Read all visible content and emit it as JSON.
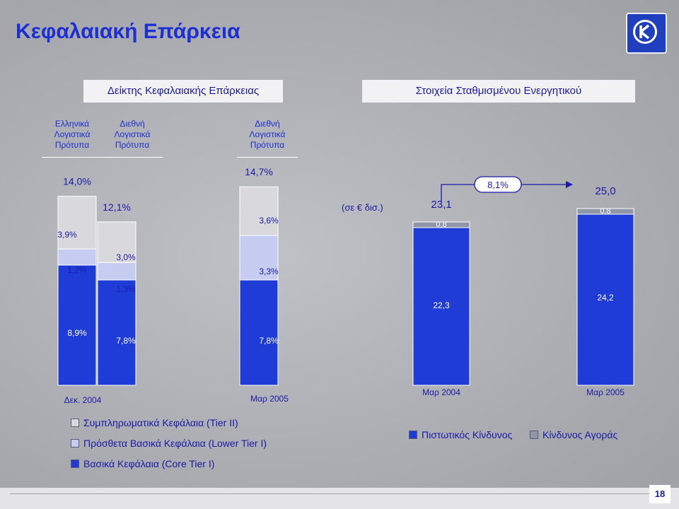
{
  "slide": {
    "title": "Κεφαλαιακή Επάρκεια",
    "page_number": "18"
  },
  "left_panel": {
    "header": "Δείκτης Κεφαλαιακής Επάρκειας",
    "column_labels": [
      "Ελληνικά\nΛογιστικά\nΠρότυπα",
      "Διεθνή\nΛογιστικά\nΠρότυπα",
      "Διεθνή\nΛογιστικά\nΠρότυπα"
    ]
  },
  "right_panel": {
    "header": "Στοιχεία Σταθμισμένου Ενεργητικού",
    "unit_note": "(σε € δισ.)",
    "growth_label": "8,1%"
  },
  "colors": {
    "tier1": "#1f3dd6",
    "lower_tier1": "#c6cdf0",
    "tier2": "#d9d9dd",
    "credit_risk": "#1f3dd6",
    "market_risk": "#8f96a8"
  },
  "chart_data": [
    {
      "type": "bar",
      "stacked": true,
      "categories": [
        "Δεκ. 2004",
        "",
        "Μαρ 2005"
      ],
      "series": [
        {
          "name": "Βασικά Κεφάλαια (Core Tier I)",
          "values": [
            8.9,
            7.8,
            7.8
          ],
          "labels": [
            "8,9%",
            "7,8%",
            "7,8%"
          ]
        },
        {
          "name": "Πρόσθετα Βασικά Κεφάλαια (Lower Tier I)",
          "values": [
            1.2,
            1.3,
            3.3
          ],
          "labels": [
            "1,2%",
            "1,3%",
            "3,3%"
          ]
        },
        {
          "name": "Συμπληρωματικά Κεφάλαια (Tier II)",
          "values": [
            3.9,
            3.0,
            3.6
          ],
          "labels": [
            "3,9%",
            "3,0%",
            "3,6%"
          ]
        }
      ],
      "totals": [
        "14,0%",
        "12,1%",
        "14,7%"
      ],
      "total_values": [
        14.0,
        12.1,
        14.7
      ]
    },
    {
      "type": "bar",
      "stacked": true,
      "categories": [
        "Μαρ 2004",
        "Μαρ 2005"
      ],
      "series": [
        {
          "name": "Πιστωτικός Κίνδυνος",
          "values": [
            22.3,
            24.2
          ],
          "labels": [
            "22,3",
            "24,2"
          ]
        },
        {
          "name": "Κίνδυνος Αγοράς",
          "values": [
            0.8,
            0.8
          ],
          "labels": [
            "0,8",
            "0,8"
          ]
        }
      ],
      "totals": [
        "23,1",
        "25,0"
      ],
      "total_values": [
        23.1,
        25.0
      ]
    }
  ]
}
